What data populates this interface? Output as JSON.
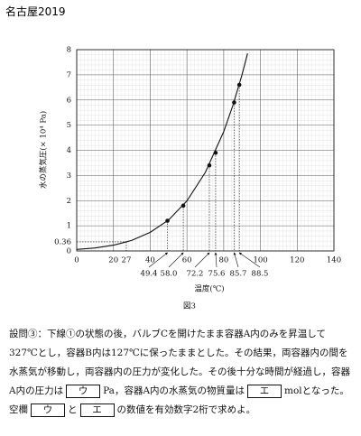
{
  "header": {
    "title": "名古屋2019"
  },
  "chart_data": {
    "type": "line",
    "y_label": "水の蒸気圧(× 10⁴ Pa)",
    "x_label": "温度(℃)",
    "caption": "図3",
    "xlim": [
      0,
      140
    ],
    "ylim": [
      0,
      8
    ],
    "xticks": [
      0,
      20,
      27,
      40,
      60,
      80,
      100,
      120,
      140
    ],
    "point_ticks": [
      49.4,
      {
        "value": 58,
        "label": "58.0"
      },
      72.2,
      75.6,
      85.7,
      88.5
    ],
    "yticks": [
      0,
      0.36,
      1,
      2,
      3,
      4,
      5,
      6,
      7,
      8
    ],
    "grid": true,
    "color": "#111111",
    "curve": {
      "x": [
        0,
        10,
        20,
        27,
        30,
        40,
        50,
        60,
        70,
        80,
        85,
        90,
        93
      ],
      "values": [
        0.06,
        0.12,
        0.23,
        0.36,
        0.42,
        0.74,
        1.23,
        1.99,
        3.12,
        4.74,
        5.78,
        7.01,
        7.85
      ]
    },
    "points": {
      "x": [
        49.4,
        58,
        72.2,
        75.6,
        85.7,
        88.5
      ],
      "values": [
        1.2,
        1.8,
        3.4,
        3.9,
        5.9,
        6.6
      ]
    },
    "guide": {
      "x": 27,
      "y": 0.36
    }
  },
  "question": {
    "label": "設問③：",
    "parts": [
      "下線①の状態の後，バルブCを開けたまま容器A内のみを昇温して327℃とし，容器B内は127℃に保ったままとした。その結果，両容器内の間を水蒸気が移動し，両容器内の圧力が変化した。その後十分な時間が経過し，容器A内の圧力は",
      "Pa，容器A内の水蒸気の物質量は",
      "molとなった。空欄",
      "と",
      "の数値を有効数字2桁で求めよ。"
    ],
    "boxes": [
      "ウ",
      "エ",
      "ウ",
      "エ"
    ]
  }
}
